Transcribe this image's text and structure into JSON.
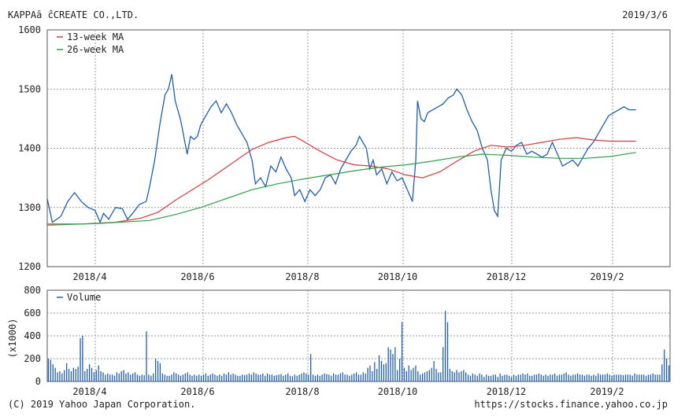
{
  "header": {
    "company": "KAPPAā ĉCREATE CO.,LTD.",
    "date": "2019/3/6"
  },
  "footer": {
    "copyright": "(C) 2019 Yahoo Japan Corporation.",
    "url": "https://stocks.finance.yahoo.co.jp"
  },
  "colors": {
    "price": "#1f5fb0",
    "ma13": "#d23b3b",
    "ma26": "#2e9e4a",
    "volume": "#1f5fb0",
    "grid": "#999999"
  },
  "chart_data": [
    {
      "type": "line",
      "ylim": [
        1200,
        1600
      ],
      "yticks": [
        "1200",
        "1300",
        "1400",
        "1500",
        "1600"
      ],
      "xticks": [
        "2018/4",
        "2018/6",
        "2018/8",
        "2018/10",
        "2018/12",
        "2019/2"
      ],
      "legend": [
        "13-week MA",
        "26-week MA"
      ],
      "x_start": "2018-03-06",
      "x_end": "2019-03-06",
      "series": [
        {
          "name": "Price",
          "points": [
            [
              0,
              1315
            ],
            [
              3,
              1275
            ],
            [
              8,
              1285
            ],
            [
              12,
              1310
            ],
            [
              16,
              1325
            ],
            [
              20,
              1310
            ],
            [
              24,
              1300
            ],
            [
              28,
              1295
            ],
            [
              31,
              1275
            ],
            [
              33,
              1290
            ],
            [
              36,
              1280
            ],
            [
              40,
              1300
            ],
            [
              44,
              1298
            ],
            [
              47,
              1280
            ],
            [
              50,
              1290
            ],
            [
              54,
              1305
            ],
            [
              58,
              1310
            ],
            [
              60,
              1335
            ],
            [
              63,
              1380
            ],
            [
              66,
              1440
            ],
            [
              69,
              1490
            ],
            [
              71,
              1500
            ],
            [
              73,
              1525
            ],
            [
              75,
              1480
            ],
            [
              78,
              1450
            ],
            [
              80,
              1420
            ],
            [
              82,
              1390
            ],
            [
              84,
              1420
            ],
            [
              86,
              1415
            ],
            [
              88,
              1420
            ],
            [
              90,
              1440
            ],
            [
              93,
              1455
            ],
            [
              96,
              1470
            ],
            [
              99,
              1480
            ],
            [
              102,
              1460
            ],
            [
              105,
              1475
            ],
            [
              108,
              1460
            ],
            [
              111,
              1440
            ],
            [
              114,
              1425
            ],
            [
              117,
              1410
            ],
            [
              120,
              1380
            ],
            [
              122,
              1340
            ],
            [
              125,
              1350
            ],
            [
              128,
              1335
            ],
            [
              131,
              1370
            ],
            [
              134,
              1360
            ],
            [
              137,
              1385
            ],
            [
              140,
              1365
            ],
            [
              143,
              1350
            ],
            [
              145,
              1320
            ],
            [
              148,
              1330
            ],
            [
              151,
              1310
            ],
            [
              154,
              1330
            ],
            [
              157,
              1320
            ],
            [
              160,
              1330
            ],
            [
              163,
              1350
            ],
            [
              166,
              1355
            ],
            [
              169,
              1340
            ],
            [
              172,
              1365
            ],
            [
              175,
              1380
            ],
            [
              178,
              1395
            ],
            [
              181,
              1405
            ],
            [
              183,
              1420
            ],
            [
              185,
              1410
            ],
            [
              187,
              1400
            ],
            [
              189,
              1365
            ],
            [
              191,
              1380
            ],
            [
              193,
              1355
            ],
            [
              196,
              1365
            ],
            [
              199,
              1340
            ],
            [
              202,
              1360
            ],
            [
              205,
              1345
            ],
            [
              208,
              1350
            ],
            [
              211,
              1330
            ],
            [
              214,
              1310
            ],
            [
              216,
              1380
            ],
            [
              217,
              1480
            ],
            [
              219,
              1450
            ],
            [
              221,
              1445
            ],
            [
              223,
              1460
            ],
            [
              226,
              1465
            ],
            [
              229,
              1470
            ],
            [
              232,
              1475
            ],
            [
              235,
              1485
            ],
            [
              238,
              1490
            ],
            [
              240,
              1500
            ],
            [
              243,
              1490
            ],
            [
              246,
              1465
            ],
            [
              249,
              1445
            ],
            [
              252,
              1430
            ],
            [
              255,
              1400
            ],
            [
              258,
              1380
            ],
            [
              260,
              1330
            ],
            [
              262,
              1295
            ],
            [
              264,
              1285
            ],
            [
              266,
              1380
            ],
            [
              269,
              1400
            ],
            [
              272,
              1395
            ],
            [
              275,
              1405
            ],
            [
              278,
              1410
            ],
            [
              281,
              1390
            ],
            [
              284,
              1395
            ],
            [
              287,
              1390
            ],
            [
              290,
              1385
            ],
            [
              293,
              1390
            ],
            [
              296,
              1410
            ],
            [
              299,
              1390
            ],
            [
              302,
              1370
            ],
            [
              305,
              1375
            ],
            [
              308,
              1380
            ],
            [
              311,
              1370
            ],
            [
              314,
              1385
            ],
            [
              317,
              1400
            ],
            [
              320,
              1410
            ],
            [
              323,
              1425
            ],
            [
              326,
              1440
            ],
            [
              329,
              1455
            ],
            [
              332,
              1460
            ],
            [
              335,
              1465
            ],
            [
              338,
              1470
            ],
            [
              341,
              1465
            ],
            [
              345,
              1465
            ]
          ]
        },
        {
          "name": "13-week MA",
          "points": [
            [
              0,
              1272
            ],
            [
              20,
              1272
            ],
            [
              40,
              1275
            ],
            [
              55,
              1282
            ],
            [
              65,
              1292
            ],
            [
              75,
              1312
            ],
            [
              85,
              1330
            ],
            [
              95,
              1348
            ],
            [
              105,
              1368
            ],
            [
              112,
              1382
            ],
            [
              120,
              1398
            ],
            [
              130,
              1410
            ],
            [
              140,
              1418
            ],
            [
              145,
              1420
            ],
            [
              150,
              1412
            ],
            [
              160,
              1395
            ],
            [
              170,
              1380
            ],
            [
              180,
              1372
            ],
            [
              190,
              1370
            ],
            [
              200,
              1365
            ],
            [
              210,
              1355
            ],
            [
              220,
              1350
            ],
            [
              230,
              1360
            ],
            [
              240,
              1378
            ],
            [
              250,
              1395
            ],
            [
              260,
              1405
            ],
            [
              270,
              1402
            ],
            [
              280,
              1405
            ],
            [
              290,
              1410
            ],
            [
              300,
              1415
            ],
            [
              310,
              1418
            ],
            [
              320,
              1414
            ],
            [
              330,
              1412
            ],
            [
              345,
              1412
            ]
          ]
        },
        {
          "name": "26-week MA",
          "points": [
            [
              0,
              1270
            ],
            [
              30,
              1273
            ],
            [
              60,
              1278
            ],
            [
              75,
              1288
            ],
            [
              90,
              1300
            ],
            [
              105,
              1315
            ],
            [
              120,
              1330
            ],
            [
              135,
              1340
            ],
            [
              150,
              1348
            ],
            [
              165,
              1355
            ],
            [
              180,
              1362
            ],
            [
              195,
              1368
            ],
            [
              210,
              1372
            ],
            [
              225,
              1378
            ],
            [
              240,
              1385
            ],
            [
              255,
              1390
            ],
            [
              270,
              1388
            ],
            [
              285,
              1385
            ],
            [
              300,
              1383
            ],
            [
              315,
              1383
            ],
            [
              330,
              1386
            ],
            [
              345,
              1393
            ]
          ]
        }
      ]
    },
    {
      "type": "bar",
      "ylim": [
        0,
        800
      ],
      "yticks": [
        "0",
        "200",
        "400",
        "600",
        "800"
      ],
      "ylabel": "(x1000)",
      "legend": [
        "Volume"
      ],
      "xticks": [
        "2018/4",
        "2018/6",
        "2018/8",
        "2018/10",
        "2018/12",
        "2019/2"
      ],
      "values": [
        200,
        190,
        150,
        120,
        80,
        90,
        70,
        100,
        160,
        110,
        90,
        120,
        110,
        130,
        380,
        400,
        90,
        110,
        150,
        120,
        80,
        100,
        140,
        90,
        80,
        60,
        70,
        60,
        60,
        50,
        80,
        70,
        90,
        100,
        70,
        80,
        60,
        70,
        80,
        60,
        50,
        60,
        55,
        440,
        60,
        50,
        70,
        200,
        180,
        160,
        70,
        60,
        50,
        50,
        60,
        80,
        70,
        60,
        50,
        60,
        70,
        80,
        60,
        50,
        60,
        50,
        60,
        50,
        60,
        70,
        50,
        60,
        70,
        60,
        50,
        60,
        50,
        70,
        60,
        80,
        60,
        70,
        60,
        50,
        50,
        60,
        55,
        60,
        70,
        60,
        80,
        70,
        60,
        60,
        70,
        50,
        70,
        60,
        60,
        50,
        55,
        60,
        65,
        50,
        60,
        70,
        50,
        45,
        60,
        50,
        60,
        70,
        80,
        70,
        60,
        240,
        60,
        50,
        60,
        50,
        60,
        70,
        65,
        60,
        50,
        70,
        60,
        60,
        70,
        80,
        60,
        60,
        50,
        60,
        70,
        80,
        60,
        60,
        80,
        70,
        120,
        140,
        90,
        170,
        110,
        230,
        180,
        150,
        160,
        300,
        280,
        240,
        300,
        100,
        200,
        520,
        120,
        90,
        140,
        100,
        120,
        140,
        90,
        60,
        70,
        80,
        90,
        100,
        120,
        180,
        110,
        80,
        80,
        300,
        620,
        520,
        110,
        90,
        80,
        100,
        80,
        90,
        100,
        80,
        60,
        50,
        70,
        60,
        50,
        70,
        60,
        40,
        60,
        50,
        50,
        60,
        60,
        40,
        70,
        50,
        60,
        60,
        50,
        40,
        60,
        50,
        60,
        60,
        70,
        60,
        70,
        50,
        50,
        60,
        60,
        70,
        60,
        50,
        60,
        50,
        60,
        60,
        70,
        50,
        60,
        60,
        70,
        80,
        60,
        50,
        60,
        60,
        70,
        60,
        60,
        50,
        60,
        60,
        50,
        60,
        50,
        70,
        60,
        60,
        60,
        70,
        60,
        50,
        60,
        60,
        60,
        60,
        55,
        60,
        60,
        60,
        50,
        70,
        60,
        60,
        60,
        60,
        50,
        60,
        60,
        70,
        60,
        60,
        60,
        150,
        280,
        200,
        140
      ]
    }
  ]
}
